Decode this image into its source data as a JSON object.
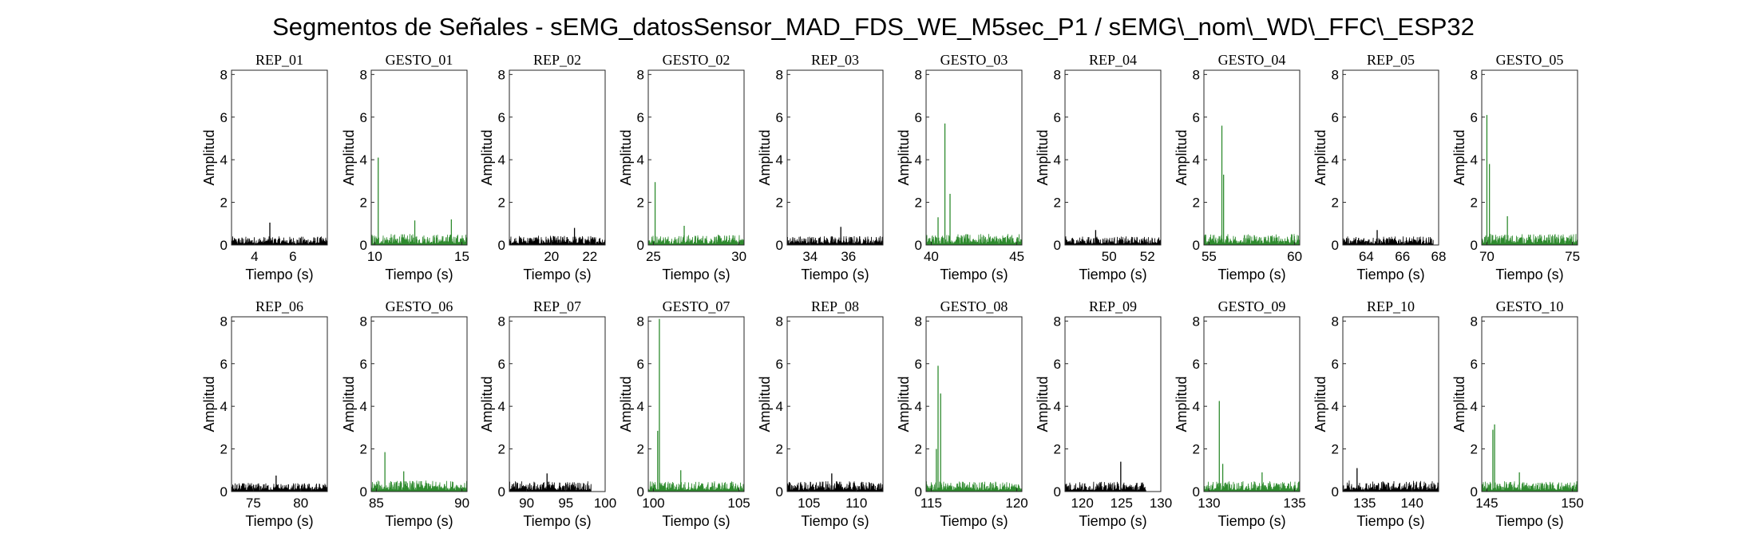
{
  "chart_data": {
    "type": "line",
    "title": "Segmentos de Señales - sEMG_datosSensor_MAD_FDS_WE_M5sec_P1 / sEMG\\_nom\\_WD\\_FFC\\_ESP32",
    "xlabel": "Tiempo (s)",
    "ylabel": "Amplitud",
    "ylim": [
      0,
      8.2
    ],
    "yticks": [
      0,
      2,
      4,
      6,
      8
    ],
    "colors": {
      "rep": "#000000",
      "gesto": "#2e8b2e"
    },
    "panels": [
      {
        "title": "REP_01",
        "kind": "rep",
        "xlim": [
          2.8,
          7.8
        ],
        "xticks": [
          4,
          6
        ],
        "signal_range": [
          2.8,
          7.8
        ],
        "peaks": [
          [
            4.8,
            1.05
          ]
        ],
        "noise": 0.35
      },
      {
        "title": "GESTO_01",
        "kind": "gesto",
        "xlim": [
          9.8,
          15.3
        ],
        "xticks": [
          10,
          15
        ],
        "signal_range": [
          9.8,
          15.3
        ],
        "peaks": [
          [
            10.2,
            4.1
          ],
          [
            12.3,
            1.15
          ],
          [
            14.4,
            1.2
          ]
        ],
        "noise": 0.45
      },
      {
        "title": "REP_02",
        "kind": "rep",
        "xlim": [
          17.8,
          22.8
        ],
        "xticks": [
          20,
          22
        ],
        "signal_range": [
          17.8,
          22.8
        ],
        "peaks": [
          [
            21.2,
            0.8
          ]
        ],
        "noise": 0.38
      },
      {
        "title": "GESTO_02",
        "kind": "gesto",
        "xlim": [
          24.7,
          30.3
        ],
        "xticks": [
          25,
          30
        ],
        "signal_range": [
          24.7,
          30.3
        ],
        "peaks": [
          [
            25.1,
            2.95
          ],
          [
            26.8,
            0.9
          ]
        ],
        "noise": 0.42
      },
      {
        "title": "REP_03",
        "kind": "rep",
        "xlim": [
          32.8,
          37.8
        ],
        "xticks": [
          34,
          36
        ],
        "signal_range": [
          32.8,
          37.8
        ],
        "peaks": [
          [
            35.6,
            0.85
          ]
        ],
        "noise": 0.38
      },
      {
        "title": "GESTO_03",
        "kind": "gesto",
        "xlim": [
          39.7,
          45.3
        ],
        "xticks": [
          40,
          45
        ],
        "signal_range": [
          39.7,
          45.3
        ],
        "peaks": [
          [
            40.8,
            5.7
          ],
          [
            41.1,
            2.4
          ],
          [
            40.4,
            1.3
          ]
        ],
        "noise": 0.45
      },
      {
        "title": "REP_04",
        "kind": "rep",
        "xlim": [
          47.7,
          52.7
        ],
        "xticks": [
          50,
          52
        ],
        "signal_range": [
          47.7,
          52.7
        ],
        "peaks": [
          [
            49.3,
            0.7
          ]
        ],
        "noise": 0.35
      },
      {
        "title": "GESTO_04",
        "kind": "gesto",
        "xlim": [
          54.7,
          60.3
        ],
        "xticks": [
          55,
          60
        ],
        "signal_range": [
          54.7,
          60.3
        ],
        "peaks": [
          [
            55.75,
            5.6
          ],
          [
            55.85,
            3.3
          ]
        ],
        "noise": 0.45
      },
      {
        "title": "REP_05",
        "kind": "rep",
        "xlim": [
          62.7,
          68
        ],
        "xticks": [
          64,
          66,
          68
        ],
        "signal_range": [
          62.7,
          67.7
        ],
        "peaks": [
          [
            64.6,
            0.7
          ]
        ],
        "noise": 0.35
      },
      {
        "title": "GESTO_05",
        "kind": "gesto",
        "xlim": [
          69.7,
          75.3
        ],
        "xticks": [
          70,
          75
        ],
        "signal_range": [
          69.7,
          75.3
        ],
        "peaks": [
          [
            70.0,
            6.1
          ],
          [
            70.15,
            3.8
          ],
          [
            71.2,
            1.35
          ]
        ],
        "noise": 0.45
      },
      {
        "title": "REP_06",
        "kind": "rep",
        "xlim": [
          72.7,
          82.8
        ],
        "xticks": [
          75,
          80
        ],
        "signal_range": [
          72.7,
          82.8
        ],
        "peaks": [
          [
            77.4,
            0.75
          ]
        ],
        "noise": 0.35
      },
      {
        "title": "GESTO_06",
        "kind": "gesto",
        "xlim": [
          84.7,
          90.3
        ],
        "xticks": [
          85,
          90
        ],
        "signal_range": [
          84.7,
          90.3
        ],
        "peaks": [
          [
            85.5,
            1.85
          ],
          [
            86.6,
            0.95
          ]
        ],
        "noise": 0.45
      },
      {
        "title": "REP_07",
        "kind": "rep",
        "xlim": [
          87.8,
          100
        ],
        "xticks": [
          90,
          95,
          100
        ],
        "signal_range": [
          87.8,
          98.2
        ],
        "peaks": [
          [
            92.6,
            0.85
          ]
        ],
        "noise": 0.42
      },
      {
        "title": "GESTO_07",
        "kind": "gesto",
        "xlim": [
          99.7,
          105.3
        ],
        "xticks": [
          100,
          105
        ],
        "signal_range": [
          99.7,
          105.3
        ],
        "peaks": [
          [
            100.35,
            8.1
          ],
          [
            100.25,
            2.85
          ],
          [
            101.6,
            1.0
          ]
        ],
        "noise": 0.42
      },
      {
        "title": "REP_08",
        "kind": "rep",
        "xlim": [
          102.7,
          112.8
        ],
        "xticks": [
          105,
          110
        ],
        "signal_range": [
          102.7,
          112.8
        ],
        "peaks": [
          [
            107.4,
            0.85
          ]
        ],
        "noise": 0.42
      },
      {
        "title": "GESTO_08",
        "kind": "gesto",
        "xlim": [
          114.7,
          120.3
        ],
        "xticks": [
          115,
          120
        ],
        "signal_range": [
          114.7,
          120.3
        ],
        "peaks": [
          [
            115.4,
            5.9
          ],
          [
            115.55,
            4.6
          ],
          [
            115.3,
            2.0
          ]
        ],
        "noise": 0.42
      },
      {
        "title": "REP_09",
        "kind": "rep",
        "xlim": [
          117.8,
          130
        ],
        "xticks": [
          120,
          125,
          130
        ],
        "signal_range": [
          117.8,
          128.1
        ],
        "peaks": [
          [
            124.9,
            1.4
          ]
        ],
        "noise": 0.4
      },
      {
        "title": "GESTO_09",
        "kind": "gesto",
        "xlim": [
          129.7,
          135.3
        ],
        "xticks": [
          130,
          135
        ],
        "signal_range": [
          129.7,
          135.3
        ],
        "peaks": [
          [
            130.6,
            4.25
          ],
          [
            130.8,
            1.3
          ],
          [
            133.1,
            0.9
          ]
        ],
        "noise": 0.42
      },
      {
        "title": "REP_10",
        "kind": "rep",
        "xlim": [
          132.7,
          142.8
        ],
        "xticks": [
          135,
          140
        ],
        "signal_range": [
          132.7,
          142.8
        ],
        "peaks": [
          [
            134.2,
            1.1
          ]
        ],
        "noise": 0.45
      },
      {
        "title": "GESTO_10",
        "kind": "gesto",
        "xlim": [
          144.7,
          150.3
        ],
        "xticks": [
          145,
          150
        ],
        "signal_range": [
          144.7,
          150.3
        ],
        "peaks": [
          [
            145.45,
            3.15
          ],
          [
            145.35,
            2.9
          ],
          [
            146.9,
            0.9
          ]
        ],
        "noise": 0.42
      }
    ]
  }
}
